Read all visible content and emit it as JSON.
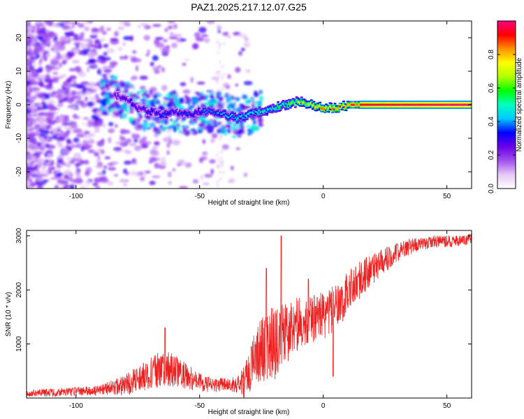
{
  "title": "PAZ1.2025.217.12.07.G25",
  "chart_data": [
    {
      "type": "heatmap",
      "xlabel": "Height of straight line (km)",
      "ylabel": "Frequency (Hz)",
      "xlim": [
        -120,
        60
      ],
      "ylim": [
        -25,
        25
      ],
      "x_ticks": [
        -100,
        -50,
        0,
        50
      ],
      "y_ticks": [
        -20,
        -10,
        0,
        10,
        20
      ],
      "x_tick_labels": [
        "-100",
        "-50",
        "0",
        "50"
      ],
      "y_tick_labels": [
        "-20",
        "-10",
        "0",
        "10",
        "20"
      ],
      "ridge": {
        "x": [
          -85,
          -80,
          -75,
          -70,
          -65,
          -60,
          -55,
          -50,
          -45,
          -40,
          -35,
          -30,
          -25,
          -20,
          -15,
          -10,
          -5,
          0,
          5,
          10,
          15,
          20,
          30,
          40,
          50,
          60
        ],
        "y": [
          3,
          2,
          -1,
          -2,
          -3,
          -2,
          -3,
          -2,
          -2,
          -3,
          -4,
          -3,
          -2,
          -1,
          0,
          1,
          0,
          -1,
          -1,
          0,
          0,
          0,
          0,
          0,
          0,
          0
        ],
        "amplitude": [
          0.25,
          0.3,
          0.3,
          0.32,
          0.35,
          0.35,
          0.35,
          0.35,
          0.38,
          0.42,
          0.45,
          0.48,
          0.5,
          0.55,
          0.6,
          0.7,
          0.75,
          0.8,
          0.85,
          0.9,
          0.93,
          0.95,
          0.97,
          0.98,
          0.99,
          1.0
        ]
      },
      "colorbar": {
        "label": "Normalized spectral amplitude",
        "range": [
          0,
          1
        ],
        "ticks": [
          0.0,
          0.2,
          0.4,
          0.6,
          0.8
        ],
        "tick_labels": [
          "0.0",
          "0.2",
          "0.4",
          "0.6",
          "0.8"
        ],
        "colormap": [
          "#ffffff",
          "#e6c8f5",
          "#a050f0",
          "#6a00e8",
          "#0000ff",
          "#00c8ff",
          "#00ffc0",
          "#00ff00",
          "#b0ff00",
          "#ffff00",
          "#ff9000",
          "#ff0000",
          "#ff0080"
        ]
      }
    },
    {
      "type": "line",
      "xlabel": "Height of straight line (km)",
      "ylabel": "SNR (10 * v/v)",
      "xlim": [
        -120,
        60
      ],
      "ylim": [
        0,
        3100
      ],
      "x_ticks": [
        -100,
        -50,
        0,
        50
      ],
      "y_ticks": [
        1000,
        2000,
        3000
      ],
      "x_tick_labels": [
        "-100",
        "-50",
        "0",
        "50"
      ],
      "y_tick_labels": [
        "1000",
        "2000",
        "3000"
      ],
      "color": "#ee2020",
      "trend": {
        "x": [
          -120,
          -110,
          -100,
          -90,
          -80,
          -75,
          -70,
          -65,
          -60,
          -55,
          -50,
          -45,
          -40,
          -35,
          -32,
          -30,
          -28,
          -25,
          -22,
          -20,
          -18,
          -15,
          -12,
          -10,
          -8,
          -5,
          -2,
          0,
          3,
          5,
          8,
          10,
          15,
          20,
          25,
          30,
          35,
          40,
          45,
          50,
          55,
          60
        ],
        "y": [
          100,
          100,
          120,
          150,
          250,
          350,
          450,
          550,
          500,
          400,
          300,
          250,
          250,
          250,
          300,
          500,
          700,
          900,
          1000,
          1000,
          1100,
          1200,
          1300,
          1400,
          1400,
          1500,
          1500,
          1500,
          1600,
          1700,
          1800,
          2000,
          2200,
          2400,
          2550,
          2700,
          2800,
          2850,
          2900,
          2900,
          2900,
          2950
        ]
      },
      "noise": {
        "x": [
          -120,
          -90,
          -80,
          -70,
          -65,
          -60,
          -50,
          -40,
          -35,
          -30,
          -25,
          -20,
          -15,
          -10,
          0,
          10,
          20,
          30,
          40,
          60
        ],
        "amplitude": [
          70,
          90,
          200,
          300,
          350,
          300,
          180,
          120,
          150,
          400,
          600,
          700,
          550,
          500,
          450,
          400,
          300,
          180,
          120,
          100
        ]
      },
      "spikes": [
        {
          "x": -64,
          "y": 1300
        },
        {
          "x": -23,
          "y": 2400
        },
        {
          "x": -17,
          "y": 3000
        },
        {
          "x": -6,
          "y": 2200
        },
        {
          "x": 4,
          "y": 400
        }
      ]
    }
  ]
}
